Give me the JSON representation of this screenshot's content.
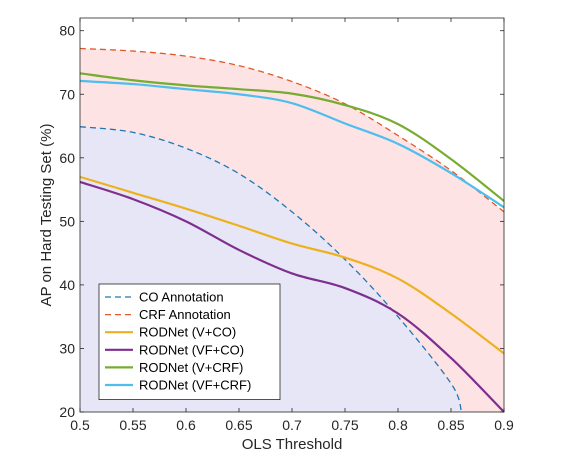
{
  "chart_data": {
    "type": "line",
    "xlabel": "OLS Threshold",
    "ylabel": "AP on Hard Testing Set (%)",
    "xlim": [
      0.5,
      0.9
    ],
    "ylim": [
      20,
      82
    ],
    "x_ticks": [
      "0.5",
      "0.55",
      "0.6",
      "0.65",
      "0.7",
      "0.75",
      "0.8",
      "0.85",
      "0.9"
    ],
    "y_ticks": [
      "20",
      "30",
      "40",
      "50",
      "60",
      "70",
      "80"
    ],
    "grid": false,
    "legend_position": "bottom-left",
    "shaded_regions": [
      {
        "between": [
          "CRF Annotation",
          "bottom"
        ],
        "color": "#fde3e3"
      },
      {
        "between": [
          "CO Annotation",
          "bottom"
        ],
        "color": "#e6e6f6"
      }
    ],
    "series": [
      {
        "name": "CO Annotation",
        "color": "#1f77b4",
        "dash": true,
        "x": [
          0.5,
          0.55,
          0.6,
          0.65,
          0.7,
          0.75,
          0.8,
          0.85,
          0.86
        ],
        "y": [
          64.9,
          64.0,
          61.5,
          57.5,
          51.5,
          44.0,
          35.0,
          24.5,
          20.0
        ]
      },
      {
        "name": "CRF Annotation",
        "color": "#e05a2b",
        "dash": true,
        "x": [
          0.5,
          0.55,
          0.6,
          0.65,
          0.7,
          0.75,
          0.8,
          0.85,
          0.9
        ],
        "y": [
          77.2,
          76.8,
          76.0,
          74.5,
          72.0,
          68.5,
          63.5,
          58.0,
          51.5
        ]
      },
      {
        "name": "RODNet (V+CO)",
        "color": "#edb120",
        "dash": false,
        "x": [
          0.5,
          0.55,
          0.6,
          0.65,
          0.7,
          0.75,
          0.8,
          0.85,
          0.9
        ],
        "y": [
          57.0,
          54.5,
          52.0,
          49.3,
          46.5,
          44.3,
          41.0,
          35.5,
          29.2
        ]
      },
      {
        "name": "RODNet (VF+CO)",
        "color": "#7e2f8e",
        "dash": false,
        "x": [
          0.5,
          0.55,
          0.6,
          0.65,
          0.7,
          0.75,
          0.8,
          0.85,
          0.9
        ],
        "y": [
          56.2,
          53.5,
          50.0,
          45.5,
          41.8,
          39.5,
          35.5,
          28.5,
          20.0
        ]
      },
      {
        "name": "RODNet (V+CRF)",
        "color": "#77ac30",
        "dash": false,
        "x": [
          0.5,
          0.55,
          0.6,
          0.65,
          0.7,
          0.75,
          0.8,
          0.85,
          0.9
        ],
        "y": [
          73.3,
          72.2,
          71.4,
          70.8,
          70.1,
          68.3,
          65.3,
          59.8,
          53.2
        ]
      },
      {
        "name": "RODNet (VF+CRF)",
        "color": "#4dbeee",
        "dash": false,
        "x": [
          0.5,
          0.55,
          0.6,
          0.65,
          0.7,
          0.75,
          0.8,
          0.85,
          0.9
        ],
        "y": [
          72.1,
          71.6,
          70.8,
          70.0,
          68.6,
          65.4,
          62.2,
          57.6,
          52.2
        ]
      }
    ]
  }
}
